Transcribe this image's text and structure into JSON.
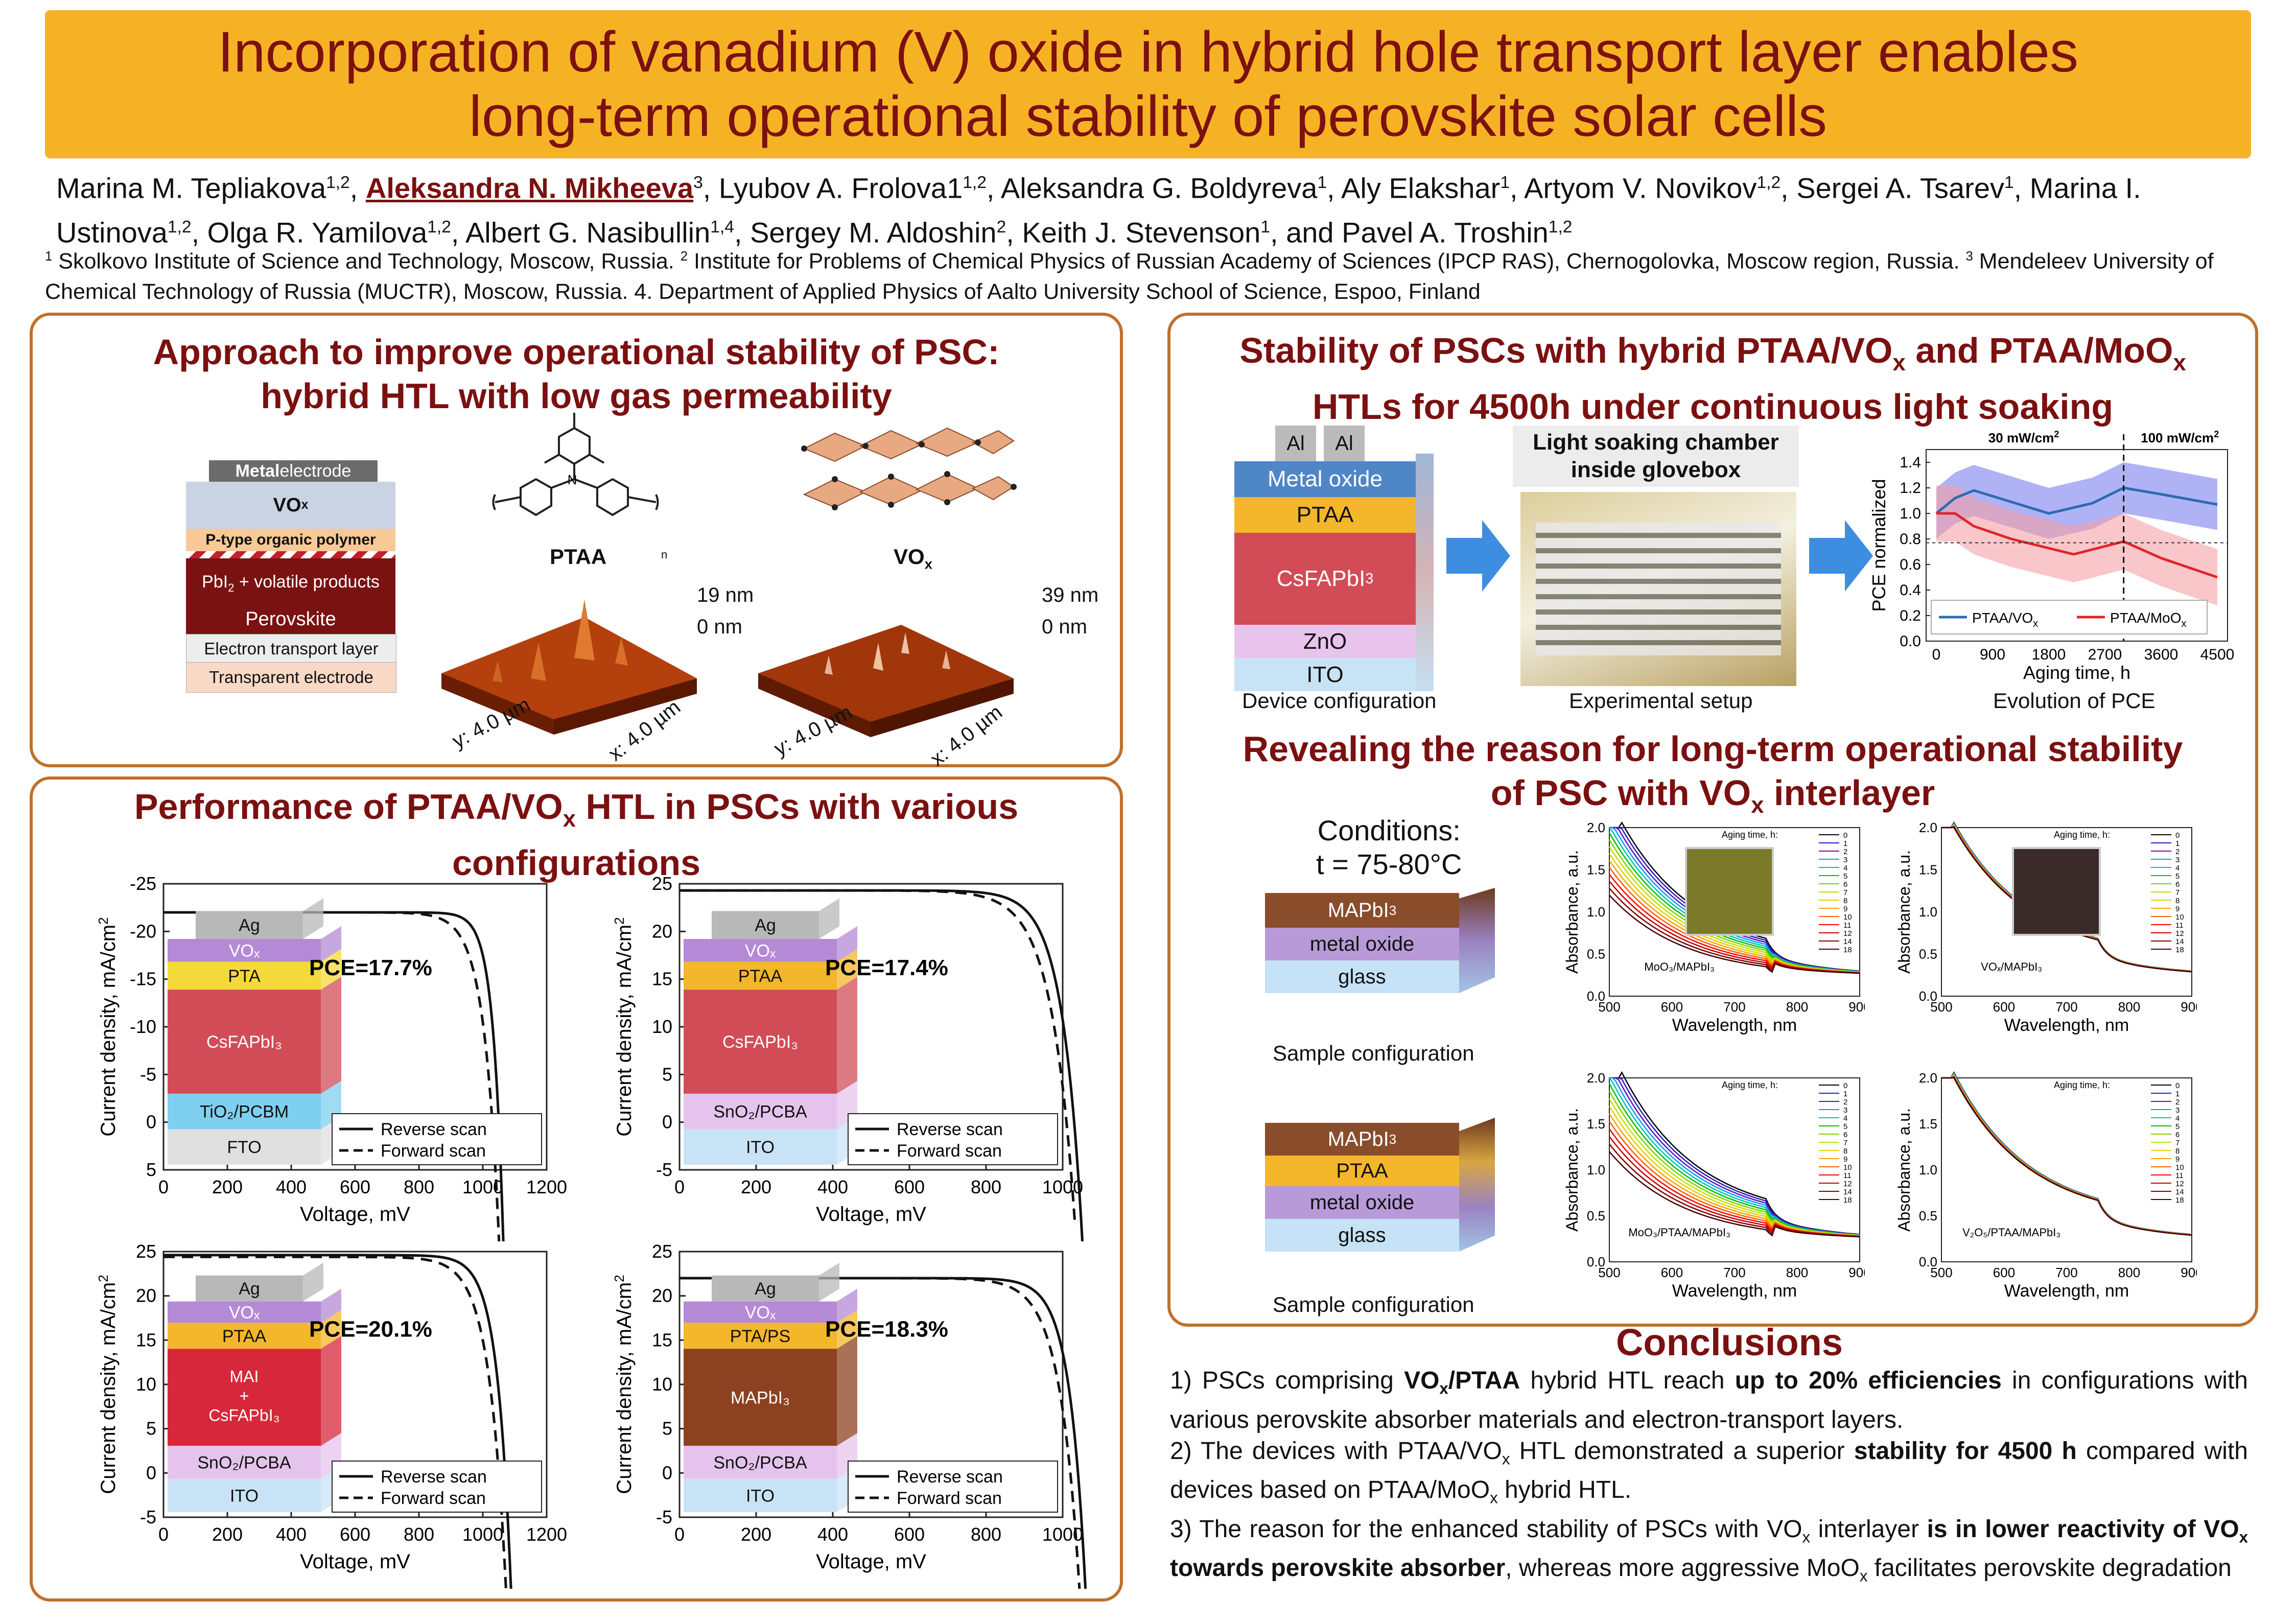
{
  "title": {
    "line1": "Incorporation of vanadium (V) oxide in hybrid hole transport layer enables",
    "line2": "long-term operational stability of perovskite solar cells"
  },
  "authors": {
    "a1": "Marina M. Tepliakova",
    "a1_sup": "1,2",
    "a2": "Aleksandra N. Mikheeva",
    "a2_sup": "3",
    "a3": ", Lyubov A. Frolova1",
    "a3_sup": "1,2",
    "a4": ", Aleksandra G. Boldyreva",
    "a4_sup": "1",
    "a5": ", Aly Elakshar",
    "a5_sup": "1",
    "a6": ", Artyom V. Novikov",
    "a6_sup": "1,2",
    "a7": ", Sergei A. Tsarev",
    "a7_sup": "1",
    "a8": ", Marina I. Ustinova",
    "a8_sup": "1,2",
    "a9": ", Olga R. Yamilova",
    "a9_sup": "1,2",
    "a10": ", Albert G. Nasibullin",
    "a10_sup": "1,4",
    "a11": ", Sergey M. Aldoshin",
    "a11_sup": "2",
    "a12": ", Keith J. Stevenson",
    "a12_sup": "1",
    "a13": ", and Pavel A. Troshin",
    "a13_sup": "1,2"
  },
  "affiliations": {
    "s1": "1",
    "t1": " Skolkovo Institute of Science and Technology,  Moscow, Russia. ",
    "s2": "2",
    "t2": " Institute for Problems of Chemical Physics of Russian Academy of Sciences (IPCP RAS), Chernogolovka, Moscow region, Russia. ",
    "s3": "3",
    "t3": " Mendeleev University of Chemical Technology of Russia (MUCTR), Moscow, Russia. 4. Department of Applied Physics of Aalto University School of Science, Espoo, Finland"
  },
  "approach": {
    "title1": "Approach to improve operational stability of PSC:",
    "title2": "hybrid HTL with low gas permeability",
    "metal": "Metal",
    "electrode": " electrode",
    "vox": "VO",
    "vox_sub": "x",
    "ptype": "P-type organic polymer",
    "pbi": "PbI",
    "pbi_sub": "2",
    "volatile": " + volatile products",
    "perovskite": "Perovskite",
    "etl": "Electron transport layer",
    "te": "Transparent electrode",
    "ptaa_label": "PTAA",
    "ptaa_n": "n",
    "vox_label": "VO",
    "vox_label_sub": "x",
    "afm1_top": "19 nm",
    "afm1_bottom": "0 nm",
    "afm2_top": "39 nm",
    "afm2_bottom": "0 nm",
    "afm_y": "y: 4.0 µm",
    "afm_x": "x: 4.0 µm"
  },
  "performance": {
    "title1": "Performance of PTAA/VO",
    "title1_sub": "x",
    "title1_tail": " HTL in PSCs with various",
    "title2": "configurations",
    "ylabel": "Current density, mA/cm",
    "ylabel_sup": "2",
    "xlabel": "Voltage, mV",
    "legend_rev": "Reverse scan",
    "legend_fwd": "Forward scan",
    "charts": [
      {
        "pce": "PCE=17.7%",
        "layers": [
          "Ag",
          "VOx",
          "PTA",
          "CsFAPbI3",
          "TiO2/PCBM",
          "FTO"
        ]
      },
      {
        "pce": "PCE=17.4%",
        "layers": [
          "Ag",
          "VOx",
          "PTAA",
          "CsFAPbI3",
          "SnO2/PCBA",
          "ITO"
        ]
      },
      {
        "pce": "PCE=20.1%",
        "layers": [
          "Ag",
          "VOx",
          "PTAA",
          "MAI + CsFAPbI3",
          "SnO2/PCBA",
          "ITO"
        ]
      },
      {
        "pce": "PCE=18.3%",
        "layers": [
          "Ag",
          "VOx",
          "PTA/PS",
          "MAPbI3",
          "SnO2/PCBA",
          "ITO"
        ]
      }
    ]
  },
  "chart_data": [
    {
      "type": "line",
      "title": "",
      "xlabel": "Voltage, mV",
      "ylabel": "Current density, mA/cm2",
      "xticks": [
        0,
        200,
        400,
        600,
        800,
        1000,
        1200
      ],
      "yticks": [
        -25,
        -20,
        -15,
        -10,
        -5,
        0,
        5
      ],
      "series": [
        {
          "name": "Reverse scan",
          "jsc": -22.0,
          "voc": 1050,
          "n": 0.03
        },
        {
          "name": "Forward scan",
          "jsc": -22.0,
          "voc": 1030,
          "n": 0.045
        }
      ]
    },
    {
      "type": "line",
      "title": "",
      "xlabel": "Voltage, mV",
      "ylabel": "Current density, mA/cm2",
      "xticks": [
        0,
        200,
        400,
        600,
        800,
        1000
      ],
      "yticks": [
        25,
        20,
        15,
        10,
        5,
        0,
        -5
      ],
      "series": [
        {
          "name": "Reverse scan",
          "jsc": 24.3,
          "voc": 1030,
          "n": 0.05
        },
        {
          "name": "Forward scan",
          "jsc": 24.3,
          "voc": 1010,
          "n": 0.06
        }
      ]
    },
    {
      "type": "line",
      "title": "",
      "xlabel": "Voltage, mV",
      "ylabel": "Current density, mA/cm2",
      "xticks": [
        0,
        200,
        400,
        600,
        800,
        1000,
        1200
      ],
      "yticks": [
        25,
        20,
        15,
        10,
        5,
        0,
        -5
      ],
      "series": [
        {
          "name": "Reverse scan",
          "jsc": 24.6,
          "voc": 1070,
          "n": 0.04
        },
        {
          "name": "Forward scan",
          "jsc": 24.4,
          "voc": 1050,
          "n": 0.05
        }
      ]
    },
    {
      "type": "line",
      "title": "",
      "xlabel": "Voltage, mV",
      "ylabel": "Current density, mA/cm2",
      "xticks": [
        0,
        200,
        400,
        600,
        800,
        1000
      ],
      "yticks": [
        25,
        20,
        15,
        10,
        5,
        0,
        -5
      ],
      "series": [
        {
          "name": "Reverse scan",
          "jsc": 22.0,
          "voc": 1040,
          "n": 0.04
        },
        {
          "name": "Forward scan",
          "jsc": 22.0,
          "voc": 1020,
          "n": 0.05
        }
      ]
    },
    {
      "type": "line",
      "title": "",
      "xlabel": "Aging time, h",
      "ylabel": "PCE normalized",
      "xticks": [
        0,
        900,
        1800,
        2700,
        3600,
        4500
      ],
      "yticks": [
        0.0,
        0.2,
        0.4,
        0.6,
        0.8,
        1.0,
        1.2,
        1.4
      ],
      "series": [
        {
          "name": "PTAA/VOx",
          "x": [
            0,
            300,
            600,
            1800,
            2500,
            3000,
            3600,
            4500
          ],
          "y": [
            1.0,
            1.12,
            1.18,
            1.0,
            1.08,
            1.2,
            1.15,
            1.07
          ]
        },
        {
          "name": "PTAA/MoOx",
          "x": [
            0,
            300,
            600,
            1200,
            2200,
            3000,
            3600,
            4500
          ],
          "y": [
            1.0,
            1.0,
            0.9,
            0.8,
            0.68,
            0.78,
            0.65,
            0.5
          ]
        }
      ]
    }
  ],
  "stability": {
    "title1": "Stability of PSCs with hybrid PTAA/VO",
    "title1_mid": " and PTAA/MoO",
    "title2": "HTLs for 4500h under continuous light soaking",
    "al": "Al",
    "metal_oxide": "Metal oxide",
    "ptaa": "PTAA",
    "csfa": "CsFAPbI",
    "csfa_sub": "3",
    "zno": "ZnO",
    "ito": "ITO",
    "device_config": "Device configuration",
    "chamber1": "Light soaking chamber",
    "chamber2": "inside glovebox",
    "exp_setup": "Experimental setup",
    "evolution": "Evolution of PCE",
    "mw30": "30 mW/cm",
    "mw100": "100 mW/cm",
    "legend_vox": "PTAA/VO",
    "legend_moox": "PTAA/MoO",
    "x_sub": "x"
  },
  "reason": {
    "title1": "Revealing the reason for long-term operational stability",
    "title2a": "of PSC with VO",
    "title2b": " interlayer",
    "conditions": "Conditions:",
    "temp": "t = 75-80°C",
    "mapbi": "MAPbI",
    "metal_oxide": "metal oxide",
    "glass": "glass",
    "ptaa": "PTAA",
    "sample_config": "Sample configuration",
    "ylabel": "Absorbance, a.u.",
    "xlabel": "Wavelength, nm",
    "aging": "Aging time, h:",
    "aging_vals": [
      "0",
      "1",
      "2",
      "3",
      "4",
      "5",
      "6",
      "7",
      "8",
      "9",
      "10",
      "11",
      "12",
      "14",
      "18"
    ],
    "spec_labels": [
      "MoO₃/MAPbI₃",
      "VOₓ/MAPbI₃",
      "MoO₃/PTAA/MAPbI₃",
      "V₂O₅/PTAA/MAPbI₃"
    ]
  },
  "conclusions": {
    "title": "Conclusions",
    "p1a": "1) PSCs comprising ",
    "p1b": "VO",
    "p1c": "/PTAA",
    "p1d": " hybrid HTL reach ",
    "p1e": "up to 20% efficiencies",
    "p1f": " in configurations with various perovskite absorber materials and electron-transport layers.",
    "p2a": "2) The devices with PTAA/VO",
    "p2b": " HTL demonstrated a superior ",
    "p2c": "stability for 4500 h",
    "p2d": " compared with devices based on PTAA/MoO",
    "p2e": " hybrid HTL.",
    "p3a": "3) The reason for the enhanced stability of PSCs with VO",
    "p3b": " interlayer ",
    "p3c": "is in lower reactivity of VO",
    "p3d": " towards perovskite absorber",
    "p3e": ", whereas more aggressive MoO",
    "p3f": " facilitates perovskite degradation",
    "x": "x"
  },
  "colors": {
    "accent": "#7b1010",
    "banner": "#f6b225",
    "border": "#c0702a"
  }
}
